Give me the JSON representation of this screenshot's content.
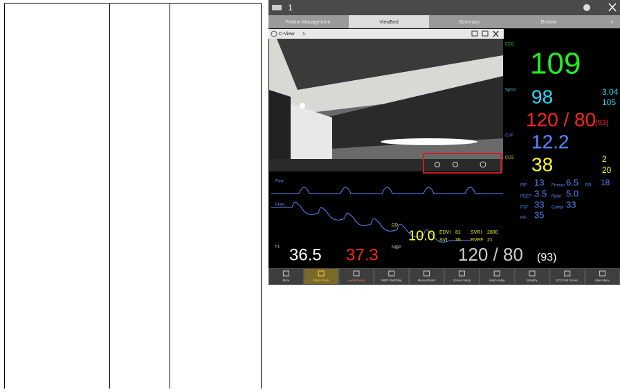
{
  "monitor": {
    "bed": "1",
    "tabs": [
      "Patient Management",
      "ViewBed",
      "Summary",
      "Review"
    ],
    "view_title": "C-View",
    "view_bed": "1.",
    "params": {
      "hr": {
        "label": "ECG",
        "value": "109"
      },
      "spo2": {
        "label": "SpO2",
        "value": "98",
        "pi": "3.04",
        "pr": "105"
      },
      "art": {
        "value": "120 / 80",
        "mean": "(93)"
      },
      "cvp": {
        "label": "CVP",
        "value": "12.2"
      },
      "co2": {
        "label": "CO2",
        "value": "38",
        "fi": "2",
        "awrr": "20"
      },
      "resp_rr": "18"
    },
    "vent": [
      [
        "PIP",
        "13",
        "Pmean",
        "6.5",
        "RR"
      ],
      [
        "PEEP",
        "3.5",
        "Pplat",
        "5.0"
      ],
      [
        "PSF",
        "33",
        "Compl",
        "33"
      ],
      [
        "PIF",
        "35"
      ]
    ],
    "waves": [
      "Paw",
      "Flow"
    ],
    "temp": {
      "label": "T1",
      "t1": "36.5",
      "t2": "37.3"
    },
    "co": {
      "label": "CO",
      "value": "10.0"
    },
    "hemo": [
      "EDVI",
      "81",
      "SVRI",
      "2800",
      "SVI",
      "35",
      "RVEF",
      "21"
    ],
    "nibp": {
      "label": "NIBP",
      "value": "120 / 80",
      "mean": "(93)"
    },
    "buttons": [
      "More",
      "Alarm Reset",
      "Audio Pause",
      "NIBP Start/Stop",
      "Manual Event",
      "Screen Setup",
      "Alarm Setup",
      "Standby",
      "ECG Full Screen",
      "Main Menu"
    ]
  }
}
